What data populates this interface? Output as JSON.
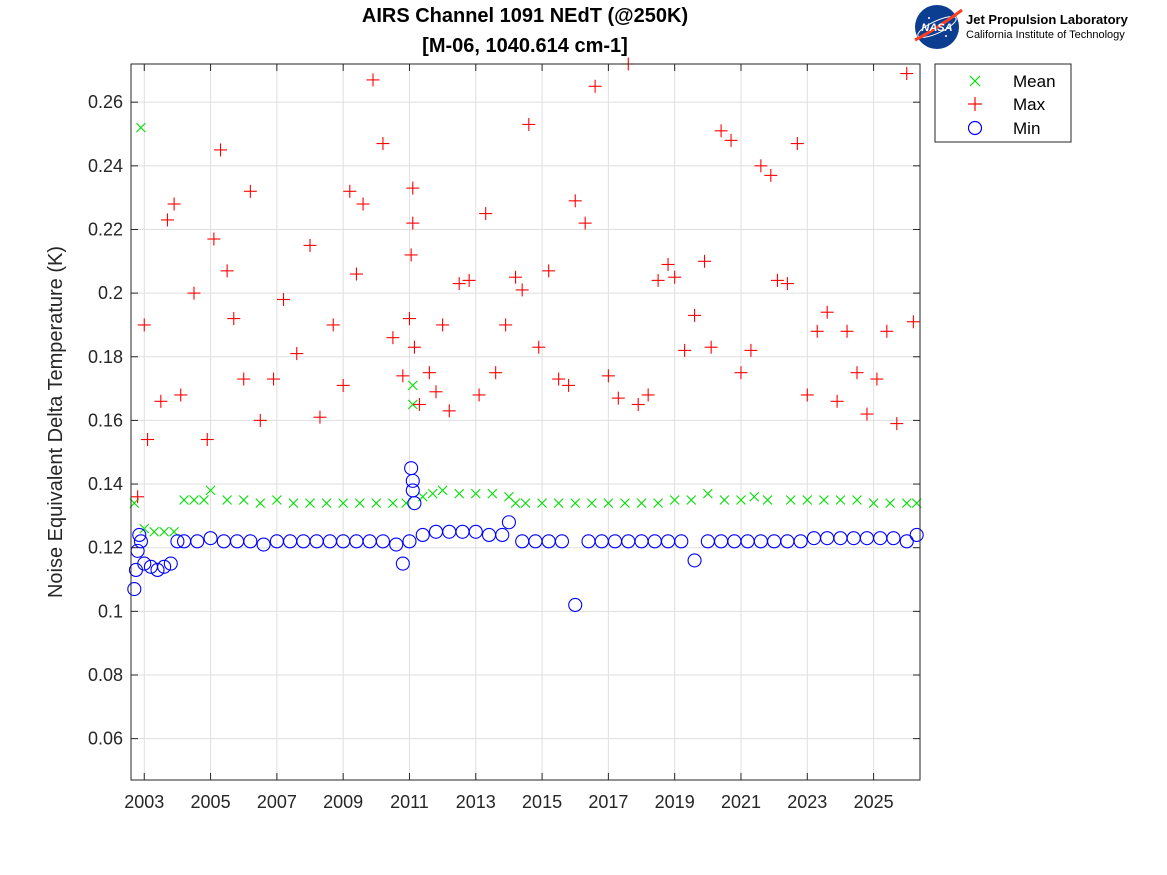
{
  "chart_data": {
    "type": "scatter",
    "title": [
      "AIRS Channel 1091 NEdT (@250K)",
      "[M-06, 1040.614 cm-1]"
    ],
    "xlabel": "",
    "ylabel": "Noise Equivalent Delta Temperature (K)",
    "xlim": [
      2002.6,
      2026.4
    ],
    "ylim": [
      0.047,
      0.272
    ],
    "xticks": [
      2003,
      2005,
      2007,
      2009,
      2011,
      2013,
      2015,
      2017,
      2019,
      2021,
      2023,
      2025
    ],
    "xtick_labels": [
      "2003",
      "2005",
      "2007",
      "2009",
      "2011",
      "2013",
      "2015",
      "2017",
      "2019",
      "2021",
      "2023",
      "2025"
    ],
    "yticks": [
      0.06,
      0.08,
      0.1,
      0.12,
      0.14,
      0.16,
      0.18,
      0.2,
      0.22,
      0.24,
      0.26
    ],
    "ytick_labels": [
      "0.06",
      "0.08",
      "0.1",
      "0.12",
      "0.14",
      "0.16",
      "0.18",
      "0.2",
      "0.22",
      "0.24",
      "0.26"
    ],
    "grid": true,
    "legend_position": "outside top-right",
    "series": [
      {
        "name": "Mean",
        "marker": "x",
        "color": "#00e000",
        "x": [
          2002.7,
          2002.9,
          2003.0,
          2003.3,
          2003.6,
          2003.9,
          2004.2,
          2004.5,
          2004.8,
          2005.0,
          2005.5,
          2006.0,
          2006.5,
          2007.0,
          2007.5,
          2008.0,
          2008.5,
          2009.0,
          2009.5,
          2010.0,
          2010.5,
          2010.9,
          2011.1,
          2011.1,
          2011.4,
          2011.7,
          2012.0,
          2012.5,
          2013.0,
          2013.5,
          2014.0,
          2014.2,
          2014.5,
          2015.0,
          2015.5,
          2016.0,
          2016.5,
          2017.0,
          2017.5,
          2018.0,
          2018.5,
          2019.0,
          2019.5,
          2020.0,
          2020.5,
          2021.0,
          2021.4,
          2021.8,
          2022.5,
          2023.0,
          2023.5,
          2024.0,
          2024.5,
          2025.0,
          2025.5,
          2026.0,
          2026.3
        ],
        "y": [
          0.134,
          0.252,
          0.126,
          0.125,
          0.125,
          0.125,
          0.135,
          0.135,
          0.135,
          0.138,
          0.135,
          0.135,
          0.134,
          0.135,
          0.134,
          0.134,
          0.134,
          0.134,
          0.134,
          0.134,
          0.134,
          0.134,
          0.171,
          0.165,
          0.136,
          0.137,
          0.138,
          0.137,
          0.137,
          0.137,
          0.136,
          0.134,
          0.134,
          0.134,
          0.134,
          0.134,
          0.134,
          0.134,
          0.134,
          0.134,
          0.134,
          0.135,
          0.135,
          0.137,
          0.135,
          0.135,
          0.136,
          0.135,
          0.135,
          0.135,
          0.135,
          0.135,
          0.135,
          0.134,
          0.134,
          0.134,
          0.134
        ]
      },
      {
        "name": "Max",
        "marker": "+",
        "color": "#ff0000",
        "x": [
          2002.8,
          2003.0,
          2003.1,
          2003.5,
          2003.7,
          2003.9,
          2004.1,
          2004.5,
          2004.9,
          2005.1,
          2005.3,
          2005.5,
          2005.7,
          2006.0,
          2006.2,
          2006.5,
          2006.9,
          2007.2,
          2007.6,
          2008.0,
          2008.3,
          2008.7,
          2009.0,
          2009.2,
          2009.4,
          2009.6,
          2009.9,
          2010.2,
          2010.5,
          2010.8,
          2011.0,
          2011.05,
          2011.1,
          2011.1,
          2011.15,
          2011.3,
          2011.6,
          2011.8,
          2012.0,
          2012.2,
          2012.5,
          2012.8,
          2013.1,
          2013.3,
          2013.6,
          2013.9,
          2014.2,
          2014.4,
          2014.6,
          2014.9,
          2015.2,
          2015.5,
          2015.8,
          2016.0,
          2016.3,
          2016.6,
          2017.0,
          2017.3,
          2017.6,
          2017.9,
          2018.2,
          2018.5,
          2018.8,
          2019.0,
          2019.3,
          2019.6,
          2019.9,
          2020.1,
          2020.4,
          2020.7,
          2021.0,
          2021.3,
          2021.6,
          2021.9,
          2022.1,
          2022.4,
          2022.7,
          2023.0,
          2023.3,
          2023.6,
          2023.9,
          2024.2,
          2024.5,
          2024.8,
          2025.1,
          2025.4,
          2025.7,
          2026.0,
          2026.2
        ],
        "y": [
          0.136,
          0.19,
          0.154,
          0.166,
          0.223,
          0.228,
          0.168,
          0.2,
          0.154,
          0.217,
          0.245,
          0.207,
          0.192,
          0.173,
          0.232,
          0.16,
          0.173,
          0.198,
          0.181,
          0.215,
          0.161,
          0.19,
          0.171,
          0.232,
          0.206,
          0.228,
          0.267,
          0.247,
          0.186,
          0.174,
          0.192,
          0.212,
          0.233,
          0.222,
          0.183,
          0.165,
          0.175,
          0.169,
          0.19,
          0.163,
          0.203,
          0.204,
          0.168,
          0.225,
          0.175,
          0.19,
          0.205,
          0.201,
          0.253,
          0.183,
          0.207,
          0.173,
          0.171,
          0.229,
          0.222,
          0.265,
          0.174,
          0.167,
          0.272,
          0.165,
          0.168,
          0.204,
          0.209,
          0.205,
          0.182,
          0.193,
          0.21,
          0.183,
          0.251,
          0.248,
          0.175,
          0.182,
          0.24,
          0.237,
          0.204,
          0.203,
          0.247,
          0.168,
          0.188,
          0.194,
          0.166,
          0.188,
          0.175,
          0.162,
          0.173,
          0.188,
          0.159,
          0.269,
          0.191
        ]
      },
      {
        "name": "Min",
        "marker": "o",
        "color": "#0000ff",
        "x": [
          2002.7,
          2002.75,
          2002.8,
          2002.85,
          2002.9,
          2003.0,
          2003.2,
          2003.4,
          2003.6,
          2003.8,
          2004.0,
          2004.2,
          2004.6,
          2005.0,
          2005.4,
          2005.8,
          2006.2,
          2006.6,
          2007.0,
          2007.4,
          2007.8,
          2008.2,
          2008.6,
          2009.0,
          2009.4,
          2009.8,
          2010.2,
          2010.6,
          2010.8,
          2011.0,
          2011.05,
          2011.1,
          2011.1,
          2011.15,
          2011.4,
          2011.8,
          2012.2,
          2012.6,
          2013.0,
          2013.4,
          2013.8,
          2014.0,
          2014.4,
          2014.8,
          2015.2,
          2015.6,
          2016.0,
          2016.4,
          2016.8,
          2017.2,
          2017.6,
          2018.0,
          2018.4,
          2018.8,
          2019.2,
          2019.6,
          2020.0,
          2020.4,
          2020.8,
          2021.2,
          2021.6,
          2022.0,
          2022.4,
          2022.8,
          2023.2,
          2023.6,
          2024.0,
          2024.4,
          2024.8,
          2025.2,
          2025.6,
          2026.0,
          2026.3
        ],
        "y": [
          0.107,
          0.113,
          0.119,
          0.124,
          0.122,
          0.115,
          0.114,
          0.113,
          0.114,
          0.115,
          0.122,
          0.122,
          0.122,
          0.123,
          0.122,
          0.122,
          0.122,
          0.121,
          0.122,
          0.122,
          0.122,
          0.122,
          0.122,
          0.122,
          0.122,
          0.122,
          0.122,
          0.121,
          0.115,
          0.122,
          0.145,
          0.141,
          0.138,
          0.134,
          0.124,
          0.125,
          0.125,
          0.125,
          0.125,
          0.124,
          0.124,
          0.128,
          0.122,
          0.122,
          0.122,
          0.122,
          0.102,
          0.122,
          0.122,
          0.122,
          0.122,
          0.122,
          0.122,
          0.122,
          0.122,
          0.116,
          0.122,
          0.122,
          0.122,
          0.122,
          0.122,
          0.122,
          0.122,
          0.122,
          0.123,
          0.123,
          0.123,
          0.123,
          0.123,
          0.123,
          0.123,
          0.122,
          0.124
        ]
      }
    ]
  },
  "logo": {
    "title": "Jet Propulsion Laboratory",
    "subtitle": "California Institute of Technology",
    "emblem_text": "NASA",
    "emblem_color": "#0b3d91",
    "swoosh_color": "#fc3d21"
  }
}
